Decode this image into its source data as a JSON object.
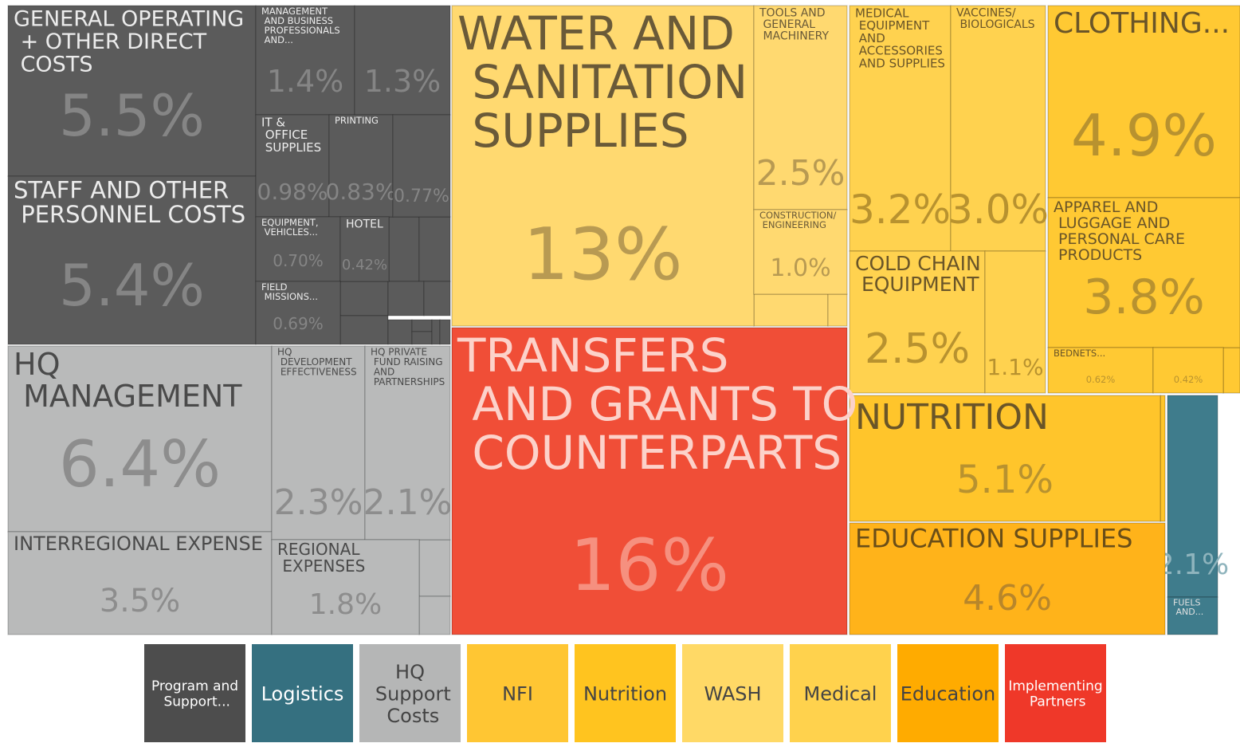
{
  "chart_data": {
    "type": "treemap",
    "groups": [
      {
        "name": "Program and Support...",
        "color": "#5b5b5b",
        "tiles": [
          {
            "name": "GENERAL OPERATING + OTHER DIRECT COSTS",
            "value": 5.5,
            "value_label": "5.5%"
          },
          {
            "name": "STAFF AND OTHER PERSONNEL COSTS",
            "value": 5.4,
            "value_label": "5.4%"
          },
          {
            "name": "MANAGEMENT AND BUSINESS PROFESSIONALS AND...",
            "value": 1.4,
            "value_label": "1.4%"
          },
          {
            "value": 1.3,
            "value_label": "1.3%"
          },
          {
            "name": "IT & OFFICE SUPPLIES",
            "value": 0.98,
            "value_label": "0.98%"
          },
          {
            "name": "PRINTING",
            "value": 0.83,
            "value_label": "0.83%"
          },
          {
            "value": 0.77,
            "value_label": "0.77%"
          },
          {
            "name": "EQUIPMENT, VEHICLES...",
            "value": 0.7,
            "value_label": "0.70%"
          },
          {
            "name": "HOTEL",
            "value": 0.42,
            "value_label": "0.42%"
          },
          {
            "name": "FIELD MISSIONS...",
            "value": 0.69,
            "value_label": "0.69%"
          }
        ]
      },
      {
        "name": "Logistics",
        "color": "#3f7c8c",
        "tiles": [
          {
            "value": 2.1,
            "value_label": "2.1%"
          },
          {
            "name": "FUELS AND..."
          }
        ]
      },
      {
        "name": "HQ Support Costs",
        "color": "#b9baba",
        "tiles": [
          {
            "name": "HQ MANAGEMENT",
            "value": 6.4,
            "value_label": "6.4%"
          },
          {
            "name": "INTERREGIONAL EXPENSE",
            "value": 3.5,
            "value_label": "3.5%"
          },
          {
            "name": "HQ DEVELOPMENT EFFECTIVENESS",
            "value": 2.3,
            "value_label": "2.3%"
          },
          {
            "name": "HQ PRIVATE FUND RAISING AND PARTNERSHIPS",
            "value": 2.1,
            "value_label": "2.1%"
          },
          {
            "name": "REGIONAL EXPENSES",
            "value": 1.8,
            "value_label": "1.8%"
          }
        ]
      },
      {
        "name": "NFI",
        "color": "#ffc933",
        "tiles": [
          {
            "name": "CLOTHING...",
            "value": 4.9,
            "value_label": "4.9%"
          },
          {
            "name": "APPAREL AND LUGGAGE AND PERSONAL CARE PRODUCTS",
            "value": 3.8,
            "value_label": "3.8%"
          },
          {
            "name": "BEDNETS...",
            "value": 0.62,
            "value_label": "0.62%"
          },
          {
            "value": 0.42,
            "value_label": "0.42%"
          }
        ]
      },
      {
        "name": "Nutrition",
        "color": "#ffc52b",
        "tiles": [
          {
            "name": "NUTRITION",
            "value": 5.1,
            "value_label": "5.1%"
          }
        ]
      },
      {
        "name": "WASH",
        "color": "#ffd970",
        "tiles": [
          {
            "name": "WATER AND SANITATION SUPPLIES",
            "value": 13,
            "value_label": "13%"
          },
          {
            "name": "TOOLS AND GENERAL MACHINERY",
            "value": 2.5,
            "value_label": "2.5%"
          },
          {
            "name": "CONSTRUCTION/ ENGINEERING",
            "value": 1.0,
            "value_label": "1.0%"
          }
        ]
      },
      {
        "name": "Medical",
        "color": "#ffd24f",
        "tiles": [
          {
            "name": "MEDICAL EQUIPMENT AND ACCESSORIES AND SUPPLIES",
            "value": 3.2,
            "value_label": "3.2%"
          },
          {
            "name": "VACCINES/ BIOLOGICALS",
            "value": 3.0,
            "value_label": "3.0%"
          },
          {
            "name": "COLD CHAIN EQUIPMENT",
            "value": 2.5,
            "value_label": "2.5%"
          },
          {
            "value": 1.1,
            "value_label": "1.1%"
          }
        ]
      },
      {
        "name": "Education",
        "color": "#ffb31a",
        "tiles": [
          {
            "name": "EDUCATION SUPPLIES",
            "value": 4.6,
            "value_label": "4.6%"
          }
        ]
      },
      {
        "name": "Implementing Partners",
        "color": "#f04e37",
        "tiles": [
          {
            "name": "TRANSFERS AND GRANTS TO COUNTERPARTS",
            "value": 16,
            "value_label": "16%"
          }
        ]
      }
    ]
  }
}
